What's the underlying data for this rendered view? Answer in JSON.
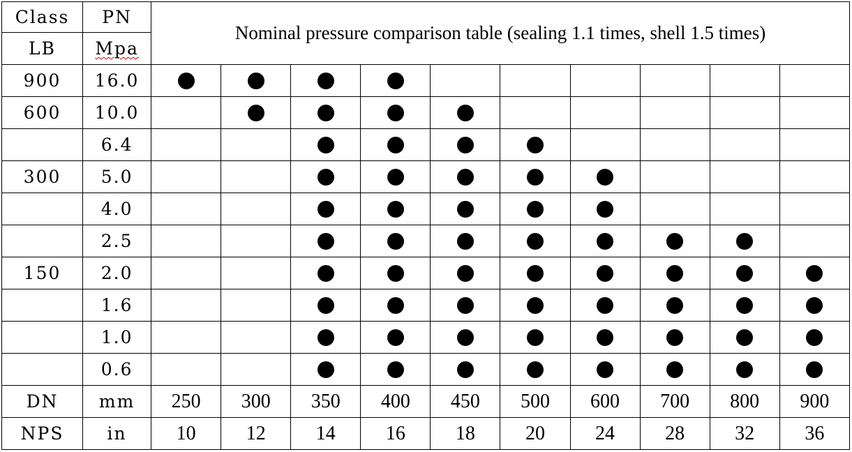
{
  "header": {
    "class_label": "Class",
    "pn_label": "PN",
    "lb_label": "LB",
    "mpa_label": "Mpa",
    "title": "Nominal pressure comparison table (sealing 1.1 times, shell 1.5 times)"
  },
  "rows": [
    {
      "lb": "900",
      "pn": "16.0",
      "marks": [
        1,
        1,
        1,
        1,
        0,
        0,
        0,
        0,
        0,
        0
      ]
    },
    {
      "lb": "600",
      "pn": "10.0",
      "marks": [
        0,
        1,
        1,
        1,
        1,
        0,
        0,
        0,
        0,
        0
      ]
    },
    {
      "lb": "",
      "pn": "6.4",
      "marks": [
        0,
        0,
        1,
        1,
        1,
        1,
        0,
        0,
        0,
        0
      ]
    },
    {
      "lb": "300",
      "pn": "5.0",
      "marks": [
        0,
        0,
        1,
        1,
        1,
        1,
        1,
        0,
        0,
        0
      ]
    },
    {
      "lb": "",
      "pn": "4.0",
      "marks": [
        0,
        0,
        1,
        1,
        1,
        1,
        1,
        0,
        0,
        0
      ]
    },
    {
      "lb": "",
      "pn": "2.5",
      "marks": [
        0,
        0,
        1,
        1,
        1,
        1,
        1,
        1,
        1,
        0
      ]
    },
    {
      "lb": "150",
      "pn": "2.0",
      "marks": [
        0,
        0,
        1,
        1,
        1,
        1,
        1,
        1,
        1,
        1
      ]
    },
    {
      "lb": "",
      "pn": "1.6",
      "marks": [
        0,
        0,
        1,
        1,
        1,
        1,
        1,
        1,
        1,
        1
      ]
    },
    {
      "lb": "",
      "pn": "1.0",
      "marks": [
        0,
        0,
        1,
        1,
        1,
        1,
        1,
        1,
        1,
        1
      ]
    },
    {
      "lb": "",
      "pn": "0.6",
      "marks": [
        0,
        0,
        1,
        1,
        1,
        1,
        1,
        1,
        1,
        1
      ]
    }
  ],
  "dn_row": {
    "label": "DN",
    "unit": "mm",
    "values": [
      "250",
      "300",
      "350",
      "400",
      "450",
      "500",
      "600",
      "700",
      "800",
      "900"
    ]
  },
  "nps_row": {
    "label": "NPS",
    "unit": "in",
    "values": [
      "10",
      "12",
      "14",
      "16",
      "18",
      "20",
      "24",
      "28",
      "32",
      "36"
    ]
  }
}
